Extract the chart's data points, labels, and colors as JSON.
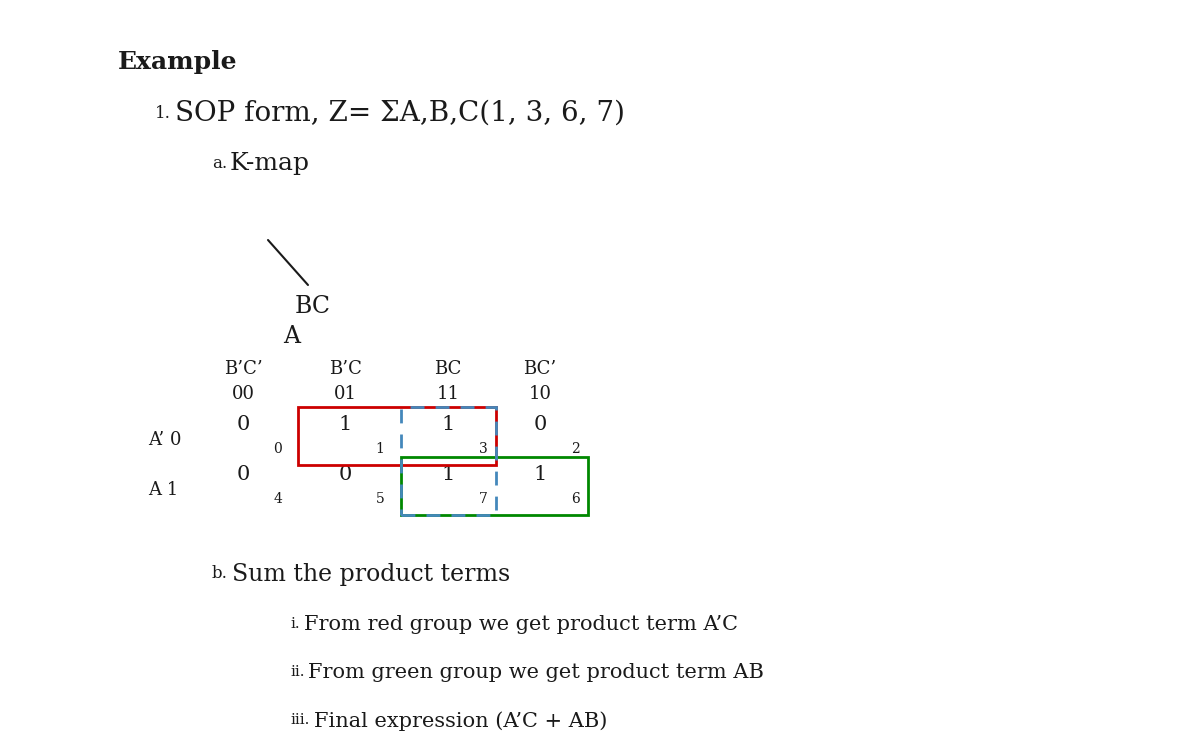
{
  "title": "Example",
  "line1_prefix": "1.",
  "line1_main": " SOP form, Z= ΣA,B,C(1, 3, 6, 7)",
  "line2_prefix": "a.",
  "line2_main": " K-map",
  "bc_label": "BC",
  "a_label": "A",
  "col_headers": [
    "B’C’",
    "B’C",
    "BC",
    "BC’"
  ],
  "col_codes": [
    "00",
    "01",
    "11",
    "10"
  ],
  "row_label_a0": "A’ 0",
  "row_label_a1": "A 1",
  "cell_values": [
    [
      "0",
      "1",
      "1",
      "0"
    ],
    [
      "0",
      "0",
      "1",
      "1"
    ]
  ],
  "cell_indices": [
    [
      "0",
      "1",
      "3",
      "2"
    ],
    [
      "4",
      "5",
      "7",
      "6"
    ]
  ],
  "bottom_b_prefix": "b.",
  "bottom_b_main": " Sum the product terms",
  "item_i_prefix": "i.",
  "item_i_main": " From red group we get product term A’C",
  "item_ii_prefix": "ii.",
  "item_ii_main": " From green group we get product term AB",
  "item_iii_prefix": "iii.",
  "item_iii_main": " Final expression (A’C + AB)",
  "bg_color": "#ffffff",
  "text_color": "#1a1a1a",
  "red_color": "#cc0000",
  "green_color": "#008800",
  "blue_dashed_color": "#4488bb"
}
